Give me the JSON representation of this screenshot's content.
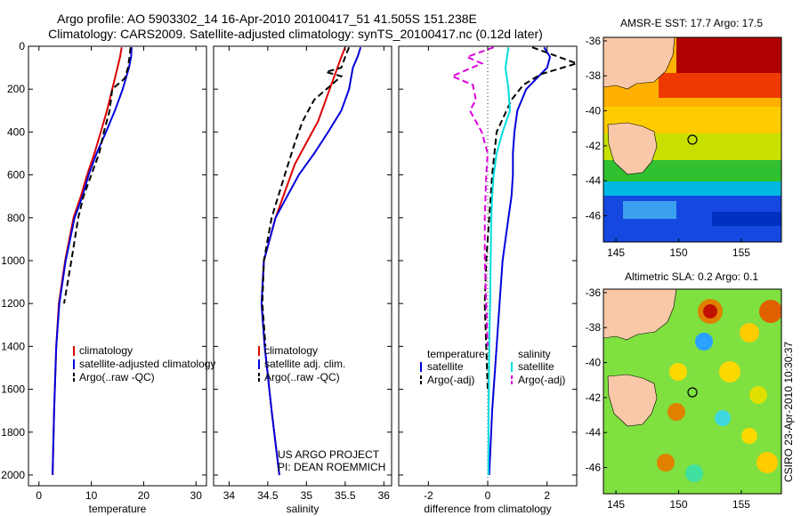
{
  "title": {
    "line1": "Argo profile: AO 5903302_14 16-Apr-2010 20100417_51 41.505S 151.238E",
    "line2": "Climatology: CARS2009. Satellite-adjusted climatology: synTS_20100417.nc (0.12d later)"
  },
  "side_label": "CSIRO 23-Apr-2010 10:30:37",
  "chart_data": [
    {
      "id": "temperature",
      "type": "line",
      "xlabel": "temperature",
      "xlim": [
        -2,
        32
      ],
      "xticks": [
        0,
        10,
        20,
        30
      ],
      "ylim": [
        2050,
        0
      ],
      "yticks": [
        0,
        200,
        400,
        600,
        800,
        1000,
        1200,
        1400,
        1600,
        1800,
        2000
      ],
      "legend": [
        "climatology",
        "satellite-adjusted climatology",
        "Argo(..raw -QC)"
      ],
      "series": [
        {
          "name": "climatology",
          "color": "#dd0000",
          "dash": "",
          "x": [
            15.8,
            15.5,
            14.5,
            13.0,
            11.8,
            10.6,
            9.2,
            8.0,
            6.6,
            5.0,
            3.8,
            3.3,
            2.9,
            2.6
          ],
          "y": [
            5,
            50,
            150,
            300,
            400,
            500,
            600,
            700,
            800,
            1000,
            1200,
            1400,
            1700,
            2000
          ]
        },
        {
          "name": "satellite-adjusted climatology",
          "color": "#0000dd",
          "dash": "",
          "x": [
            17.7,
            17.6,
            17.2,
            16.0,
            14.5,
            12.8,
            11.0,
            9.5,
            8.3,
            6.8,
            5.1,
            3.9,
            3.3,
            2.9,
            2.6
          ],
          "y": [
            5,
            50,
            100,
            200,
            300,
            400,
            500,
            600,
            700,
            800,
            1000,
            1200,
            1400,
            1700,
            2000
          ]
        },
        {
          "name": "Argo(..raw -QC)",
          "color": "#000000",
          "dash": "7,4",
          "x": [
            17.5,
            17.3,
            17.0,
            16.4,
            14.0,
            13.5,
            12.4,
            11.5,
            10.0,
            8.5,
            7.5,
            6.2,
            4.8
          ],
          "y": [
            5,
            50,
            100,
            150,
            200,
            300,
            400,
            500,
            600,
            700,
            800,
            1000,
            1200
          ]
        }
      ]
    },
    {
      "id": "salinity",
      "type": "line",
      "xlabel": "salinity",
      "xlim": [
        33.8,
        36.1
      ],
      "xticks": [
        34,
        34.5,
        35,
        35.5,
        36
      ],
      "ylim": [
        2050,
        0
      ],
      "legend": [
        "climatology",
        "satellite adj. clim.",
        "Argo(..raw -QC)"
      ],
      "annotation": [
        "US ARGO PROJECT",
        "PI: DEAN ROEMMICH"
      ],
      "series": [
        {
          "name": "climatology",
          "color": "#dd0000",
          "dash": "",
          "x": [
            35.5,
            35.45,
            35.35,
            35.25,
            35.15,
            35.0,
            34.85,
            34.75,
            34.6,
            34.45,
            34.42,
            34.46,
            34.55,
            34.65
          ],
          "y": [
            5,
            50,
            150,
            250,
            350,
            450,
            550,
            650,
            800,
            1000,
            1200,
            1400,
            1700,
            2000
          ]
        },
        {
          "name": "satellite adj. clim.",
          "color": "#0000dd",
          "dash": "",
          "x": [
            35.7,
            35.66,
            35.6,
            35.55,
            35.45,
            35.28,
            35.1,
            34.9,
            34.75,
            34.6,
            34.45,
            34.42,
            34.46,
            34.55,
            34.65
          ],
          "y": [
            5,
            50,
            100,
            200,
            300,
            400,
            500,
            600,
            700,
            800,
            1000,
            1200,
            1400,
            1700,
            2000
          ]
        },
        {
          "name": "Argo(..raw -QC)",
          "color": "#000000",
          "dash": "7,4",
          "x": [
            35.55,
            35.5,
            35.45,
            35.25,
            35.45,
            35.1,
            34.95,
            34.85,
            34.72,
            34.55,
            34.45,
            34.43,
            34.47
          ],
          "y": [
            5,
            50,
            100,
            120,
            140,
            250,
            350,
            450,
            600,
            800,
            1000,
            1200,
            1400
          ]
        }
      ]
    },
    {
      "id": "difference",
      "type": "line",
      "xlabel": "difference from climatology",
      "xlim": [
        -3,
        3
      ],
      "xticks": [
        -2,
        0,
        2
      ],
      "ylim": [
        2050,
        0
      ],
      "legend_left_title": "temperature",
      "legend_right_title": "salinity",
      "legend_left": [
        "satellite",
        "Argo(-adj)"
      ],
      "legend_right": [
        "satellite",
        "Argo(-adj)"
      ],
      "series": [
        {
          "name": "temperature satellite",
          "color": "#0000dd",
          "dash": "",
          "x": [
            1.9,
            2.1,
            2.0,
            1.3,
            1.0,
            0.9,
            0.85,
            0.85,
            0.8,
            0.7,
            0.5,
            0.4,
            0.3,
            0.15,
            0.05
          ],
          "y": [
            5,
            50,
            100,
            200,
            300,
            400,
            500,
            600,
            700,
            800,
            1000,
            1200,
            1400,
            1700,
            2000
          ]
        },
        {
          "name": "temperature Argo(-adj)",
          "color": "#000000",
          "dash": "7,4",
          "x": [
            1.5,
            2.4,
            3.0,
            1.8,
            1.2,
            0.8,
            0.3,
            0.15,
            0.05,
            -0.05,
            -0.1,
            -0.05,
            0.0
          ],
          "y": [
            5,
            50,
            80,
            130,
            180,
            250,
            400,
            600,
            800,
            1000,
            1200,
            1400,
            1600
          ]
        },
        {
          "name": "salinity satellite",
          "color": "#00dddd",
          "dash": "",
          "x": [
            0.7,
            0.65,
            0.6,
            0.7,
            0.75,
            0.5,
            0.3,
            0.2,
            0.15,
            0.12,
            0.1,
            0.08,
            0.05,
            0.03,
            0.02
          ],
          "y": [
            5,
            50,
            100,
            200,
            300,
            400,
            500,
            600,
            700,
            800,
            1000,
            1200,
            1400,
            1700,
            2000
          ]
        },
        {
          "name": "salinity Argo(-adj)",
          "color": "#dd00dd",
          "dash": "7,4",
          "x": [
            0.2,
            -0.7,
            -0.2,
            -1.2,
            -0.5,
            -0.4,
            -0.6,
            -0.2,
            0.0,
            -0.05,
            -0.1,
            -0.1,
            -0.05,
            0.0
          ],
          "y": [
            5,
            50,
            80,
            140,
            180,
            250,
            300,
            400,
            500,
            600,
            800,
            1000,
            1200,
            1400
          ]
        }
      ]
    },
    {
      "id": "sst-map",
      "type": "heatmap",
      "title": "AMSR-E SST: 17.7 Argo: 17.5",
      "xlim": [
        144,
        158.2
      ],
      "ylim": [
        -47.5,
        -35.8
      ],
      "xticks": [
        145,
        150,
        155
      ],
      "yticks": [
        -36,
        -38,
        -40,
        -42,
        -44,
        -46
      ],
      "profile_point": [
        151.24,
        -41.5
      ]
    },
    {
      "id": "sla-map",
      "type": "heatmap",
      "title": "Altimetric SLA: 0.2 Argo: 0.1",
      "xlim": [
        144,
        158.2
      ],
      "ylim": [
        -47.5,
        -35.8
      ],
      "xticks": [
        145,
        150,
        155
      ],
      "yticks": [
        -36,
        -38,
        -40,
        -42,
        -44,
        -46
      ],
      "profile_point": [
        151.24,
        -41.5
      ]
    }
  ]
}
